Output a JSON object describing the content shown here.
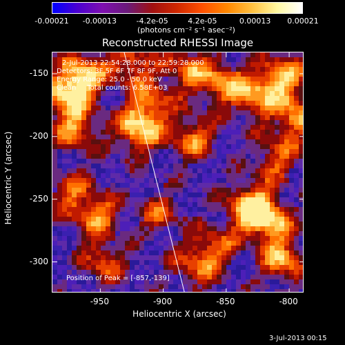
{
  "colorbar": {
    "ticks": [
      "-0.00021",
      "-0.00013",
      "-4.2e-05",
      "4.2e-05",
      "0.00013",
      "0.00021"
    ],
    "units": "(photons cm⁻² s⁻¹ asec⁻²)",
    "gradient": [
      "#0000ff",
      "#4b00d0",
      "#7e0fb0",
      "#6a1a7a",
      "#a01010",
      "#d02800",
      "#ff5000",
      "#ff8800",
      "#ffc040",
      "#fff8a0",
      "#ffffff"
    ]
  },
  "image": {
    "title": "Reconstructed RHESSI Image",
    "info_lines": [
      "2-Jul-2013 22:54:28.000 to 22:59:28.000",
      "Detectors: 3F 5F 6F 7F 8F 9F, Att 0",
      "Energy Range: 25.0 - 50.0 keV",
      "Clean     Total counts: 6.58E+03"
    ],
    "peak_label": "Position of Peak = [-857,-139]",
    "limb_color": "#ffffff"
  },
  "chart_data": {
    "type": "heatmap",
    "title": "Reconstructed RHESSI Image",
    "xlabel": "Heliocentric X (arcsec)",
    "ylabel": "Heliocentric Y (arcsec)",
    "xlim": [
      -988,
      -788
    ],
    "ylim": [
      -325,
      -133
    ],
    "x_ticks": [
      -950,
      -900,
      -850,
      -800
    ],
    "y_ticks": [
      -150,
      -200,
      -250,
      -300
    ],
    "x_tick_labels": [
      "-950",
      "-900",
      "-850",
      "-800"
    ],
    "y_tick_labels": [
      "-150",
      "-200",
      "-250",
      "-300"
    ],
    "colorbar_range": [
      -0.00021,
      0.00021
    ],
    "peak_position": [
      -857,
      -139
    ],
    "colormap": "rainbow/heat",
    "limb_line": [
      [
        -931,
        -133
      ],
      [
        -883,
        -325
      ]
    ]
  },
  "footer": {
    "date": "3-Jul-2013 00:15"
  }
}
